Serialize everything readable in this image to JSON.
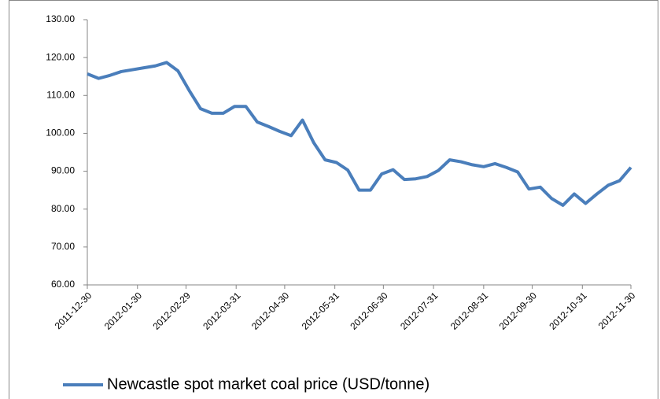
{
  "chart_data": {
    "type": "line",
    "x": [
      "2011-12-30",
      "2012-01-06",
      "2012-01-13",
      "2012-01-20",
      "2012-01-27",
      "2012-02-03",
      "2012-02-10",
      "2012-02-17",
      "2012-02-24",
      "2012-03-02",
      "2012-03-09",
      "2012-03-16",
      "2012-03-23",
      "2012-03-30",
      "2012-04-06",
      "2012-04-13",
      "2012-04-20",
      "2012-04-27",
      "2012-05-04",
      "2012-05-11",
      "2012-05-18",
      "2012-05-25",
      "2012-06-01",
      "2012-06-08",
      "2012-06-15",
      "2012-06-22",
      "2012-06-29",
      "2012-07-06",
      "2012-07-13",
      "2012-07-20",
      "2012-07-27",
      "2012-08-03",
      "2012-08-10",
      "2012-08-17",
      "2012-08-24",
      "2012-08-31",
      "2012-09-07",
      "2012-09-14",
      "2012-09-21",
      "2012-09-28",
      "2012-10-05",
      "2012-10-12",
      "2012-10-19",
      "2012-10-26",
      "2012-11-02",
      "2012-11-09",
      "2012-11-16",
      "2012-11-23",
      "2012-11-30"
    ],
    "series": [
      {
        "name": "Newcastle spot market coal price (USD/tonne)",
        "color": "#4a7ebb",
        "values": [
          115.7,
          114.5,
          115.3,
          116.3,
          116.8,
          117.3,
          117.8,
          118.7,
          116.5,
          111.3,
          106.5,
          105.3,
          105.3,
          107.1,
          107.1,
          103,
          101.8,
          100.5,
          99.4,
          103.5,
          97.5,
          93,
          92.3,
          90.3,
          85,
          85,
          89.3,
          90.4,
          87.8,
          88,
          88.6,
          90.2,
          93,
          92.5,
          91.7,
          91.2,
          92,
          91,
          89.8,
          85.3,
          85.8,
          82.8,
          81,
          84,
          81.5,
          84,
          86.3,
          87.5,
          91
        ]
      }
    ],
    "xlim": [
      "2011-12-30",
      "2012-11-30"
    ],
    "xticks": [
      "2011-12-30",
      "2012-01-30",
      "2012-02-29",
      "2012-03-31",
      "2012-04-30",
      "2012-05-31",
      "2012-06-30",
      "2012-07-31",
      "2012-08-31",
      "2012-09-30",
      "2012-10-31",
      "2012-11-30"
    ],
    "ylim": [
      60,
      130
    ],
    "yticks": [
      {
        "value": 60,
        "label": "60.00"
      },
      {
        "value": 70,
        "label": "70.00"
      },
      {
        "value": 80,
        "label": "80.00"
      },
      {
        "value": 90,
        "label": "90.00"
      },
      {
        "value": 100,
        "label": "100.00"
      },
      {
        "value": 110,
        "label": "110.00"
      },
      {
        "value": 120,
        "label": "120.00"
      },
      {
        "value": 130,
        "label": "130.00"
      }
    ],
    "grid": false,
    "legend": "bottom"
  }
}
